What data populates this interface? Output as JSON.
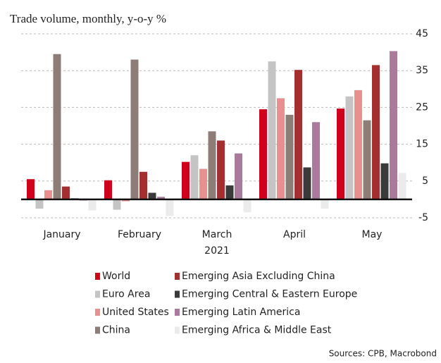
{
  "chart_data": {
    "type": "bar",
    "title": "Trade volume, monthly, y-o-y %",
    "xlabel": "2021",
    "source": "Sources: CPB, Macrobond",
    "categories": [
      "January",
      "February",
      "March",
      "April",
      "May"
    ],
    "series": [
      {
        "name": "World",
        "color": "#d0021b",
        "values": [
          5.5,
          5.2,
          10.2,
          24.5,
          24.7
        ]
      },
      {
        "name": "Euro Area",
        "color": "#c4c4c4",
        "values": [
          -2.5,
          -2.8,
          12,
          37.5,
          28
        ]
      },
      {
        "name": "United States",
        "color": "#e8908f",
        "values": [
          2.5,
          -0.5,
          8.3,
          27.5,
          29.7
        ]
      },
      {
        "name": "China",
        "color": "#8e7d76",
        "values": [
          39.5,
          38,
          18.5,
          23,
          21.5
        ]
      },
      {
        "name": "Emerging Asia Excluding China",
        "color": "#a3302e",
        "values": [
          3.5,
          7.5,
          16,
          35.2,
          36.5
        ]
      },
      {
        "name": "Emerging Central & Eastern Europe",
        "color": "#3a3a3a",
        "values": [
          0.3,
          1.8,
          3.8,
          8.7,
          9.8
        ]
      },
      {
        "name": "Emerging Latin America",
        "color": "#a97a9c",
        "values": [
          -0.3,
          0.7,
          12.5,
          21,
          40.3
        ]
      },
      {
        "name": "Emerging Africa & Middle East",
        "color": "#ebebeb",
        "values": [
          -3,
          -4.5,
          -3.5,
          -2.5,
          7.2
        ]
      }
    ],
    "ylim": [
      -5,
      45
    ],
    "yticks": [
      45,
      35,
      25,
      15,
      5,
      -5
    ],
    "grid": true
  }
}
